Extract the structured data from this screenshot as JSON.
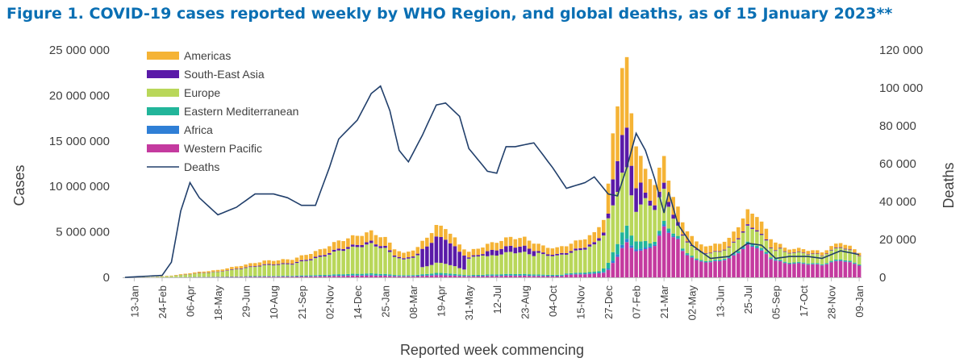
{
  "title": "Figure 1. COVID-19 cases reported weekly by WHO Region, and global deaths, as of 15 January 2023**",
  "chart_data": {
    "type": "bar",
    "stacked": true,
    "title": "Figure 1. COVID-19 cases reported weekly by WHO Region, and global deaths, as of 15 January 2023**",
    "xlabel": "Reported week commencing",
    "ylabel": "Cases",
    "y2label": "Deaths",
    "ylim": [
      0,
      25000000
    ],
    "y2lim": [
      0,
      120000
    ],
    "yticks": [
      "0",
      "5 000 000",
      "10 000 000",
      "15 000 000",
      "20 000 000",
      "25 000 000"
    ],
    "y2ticks": [
      "0",
      "20 000",
      "40 000",
      "60 000",
      "80 000",
      "100 000",
      "120 000"
    ],
    "xticks": [
      {
        "label": "13-Jan",
        "week": 2
      },
      {
        "label": "24-Feb",
        "week": 8
      },
      {
        "label": "06-Apr",
        "week": 14
      },
      {
        "label": "18-May",
        "week": 20
      },
      {
        "label": "29-Jun",
        "week": 26
      },
      {
        "label": "10-Aug",
        "week": 32
      },
      {
        "label": "21-Sep",
        "week": 38
      },
      {
        "label": "02-Nov",
        "week": 44
      },
      {
        "label": "14-Dec",
        "week": 50
      },
      {
        "label": "25-Jan",
        "week": 56
      },
      {
        "label": "08-Mar",
        "week": 62
      },
      {
        "label": "19-Apr",
        "week": 68
      },
      {
        "label": "31-May",
        "week": 74
      },
      {
        "label": "12-Jul",
        "week": 80
      },
      {
        "label": "23-Aug",
        "week": 86
      },
      {
        "label": "04-Oct",
        "week": 92
      },
      {
        "label": "15-Nov",
        "week": 98
      },
      {
        "label": "27-Dec",
        "week": 104
      },
      {
        "label": "07-Feb",
        "week": 110
      },
      {
        "label": "21-Mar",
        "week": 116
      },
      {
        "label": "02-May",
        "week": 122
      },
      {
        "label": "13-Jun",
        "week": 128
      },
      {
        "label": "25-Jul",
        "week": 134
      },
      {
        "label": "05-Sep",
        "week": 140
      },
      {
        "label": "17-Oct",
        "week": 146
      },
      {
        "label": "28-Nov",
        "week": 152
      },
      {
        "label": "09-Jan",
        "week": 158
      }
    ],
    "legend_position": "top-left",
    "legend": [
      {
        "name": "Americas",
        "color": "#f5b335",
        "kind": "bar"
      },
      {
        "name": "South-East Asia",
        "color": "#5a1aa8",
        "kind": "bar"
      },
      {
        "name": "Europe",
        "color": "#b9d75a",
        "kind": "bar"
      },
      {
        "name": "Eastern Mediterranean",
        "color": "#22b59a",
        "kind": "bar"
      },
      {
        "name": "Africa",
        "color": "#2f7fd6",
        "kind": "bar"
      },
      {
        "name": "Western Pacific",
        "color": "#c43a9f",
        "kind": "bar"
      },
      {
        "name": "Deaths",
        "color": "#213f6b",
        "kind": "line"
      }
    ],
    "stack_order": [
      "Western Pacific",
      "Africa",
      "Eastern Mediterranean",
      "Europe",
      "South-East Asia",
      "Americas"
    ],
    "series_total_cases_estimated": [
      {
        "week": 0,
        "value": 10000
      },
      {
        "week": 6,
        "value": 50000
      },
      {
        "week": 10,
        "value": 200000
      },
      {
        "week": 13,
        "value": 400000
      },
      {
        "week": 16,
        "value": 600000
      },
      {
        "week": 20,
        "value": 800000
      },
      {
        "week": 25,
        "value": 1300000
      },
      {
        "week": 30,
        "value": 1800000
      },
      {
        "week": 36,
        "value": 2000000
      },
      {
        "week": 42,
        "value": 3000000
      },
      {
        "week": 46,
        "value": 4000000
      },
      {
        "week": 50,
        "value": 4600000
      },
      {
        "week": 53,
        "value": 5000000
      },
      {
        "week": 56,
        "value": 4300000
      },
      {
        "week": 58,
        "value": 3200000
      },
      {
        "week": 60,
        "value": 2600000
      },
      {
        "week": 63,
        "value": 3300000
      },
      {
        "week": 67,
        "value": 5600000
      },
      {
        "week": 69,
        "value": 5500000
      },
      {
        "week": 72,
        "value": 3600000
      },
      {
        "week": 74,
        "value": 2800000
      },
      {
        "week": 78,
        "value": 3600000
      },
      {
        "week": 83,
        "value": 4400000
      },
      {
        "week": 86,
        "value": 4300000
      },
      {
        "week": 90,
        "value": 3400000
      },
      {
        "week": 93,
        "value": 3200000
      },
      {
        "week": 97,
        "value": 3900000
      },
      {
        "week": 101,
        "value": 4800000
      },
      {
        "week": 103,
        "value": 6500000
      },
      {
        "week": 104,
        "value": 10000000
      },
      {
        "week": 105,
        "value": 15500000
      },
      {
        "week": 106,
        "value": 19500000
      },
      {
        "week": 107,
        "value": 23300000
      },
      {
        "week": 108,
        "value": 23300000
      },
      {
        "week": 109,
        "value": 18000000
      },
      {
        "week": 110,
        "value": 15000000
      },
      {
        "week": 112,
        "value": 11500000
      },
      {
        "week": 114,
        "value": 10500000
      },
      {
        "week": 116,
        "value": 13000000
      },
      {
        "week": 118,
        "value": 9000000
      },
      {
        "week": 120,
        "value": 6000000
      },
      {
        "week": 123,
        "value": 3800000
      },
      {
        "week": 126,
        "value": 3400000
      },
      {
        "week": 130,
        "value": 4200000
      },
      {
        "week": 133,
        "value": 6500000
      },
      {
        "week": 134,
        "value": 7200000
      },
      {
        "week": 136,
        "value": 6900000
      },
      {
        "week": 139,
        "value": 4300000
      },
      {
        "week": 142,
        "value": 3200000
      },
      {
        "week": 146,
        "value": 3100000
      },
      {
        "week": 150,
        "value": 2800000
      },
      {
        "week": 154,
        "value": 3900000
      },
      {
        "week": 158,
        "value": 2800000
      }
    ],
    "series_deaths_estimated": [
      {
        "week": 0,
        "value": 0
      },
      {
        "week": 8,
        "value": 1000
      },
      {
        "week": 10,
        "value": 8000
      },
      {
        "week": 12,
        "value": 35000
      },
      {
        "week": 14,
        "value": 50000
      },
      {
        "week": 16,
        "value": 42000
      },
      {
        "week": 20,
        "value": 33000
      },
      {
        "week": 24,
        "value": 37000
      },
      {
        "week": 28,
        "value": 44000
      },
      {
        "week": 32,
        "value": 44000
      },
      {
        "week": 35,
        "value": 42000
      },
      {
        "week": 38,
        "value": 38000
      },
      {
        "week": 41,
        "value": 38000
      },
      {
        "week": 44,
        "value": 58000
      },
      {
        "week": 46,
        "value": 73000
      },
      {
        "week": 50,
        "value": 83000
      },
      {
        "week": 53,
        "value": 97000
      },
      {
        "week": 55,
        "value": 101000
      },
      {
        "week": 57,
        "value": 88000
      },
      {
        "week": 59,
        "value": 67000
      },
      {
        "week": 61,
        "value": 61000
      },
      {
        "week": 64,
        "value": 75000
      },
      {
        "week": 67,
        "value": 91000
      },
      {
        "week": 69,
        "value": 92000
      },
      {
        "week": 72,
        "value": 85000
      },
      {
        "week": 74,
        "value": 68000
      },
      {
        "week": 78,
        "value": 56000
      },
      {
        "week": 80,
        "value": 55000
      },
      {
        "week": 82,
        "value": 69000
      },
      {
        "week": 84,
        "value": 69000
      },
      {
        "week": 88,
        "value": 71000
      },
      {
        "week": 92,
        "value": 58000
      },
      {
        "week": 95,
        "value": 47000
      },
      {
        "week": 99,
        "value": 50000
      },
      {
        "week": 101,
        "value": 53000
      },
      {
        "week": 104,
        "value": 44000
      },
      {
        "week": 106,
        "value": 43000
      },
      {
        "week": 108,
        "value": 58000
      },
      {
        "week": 110,
        "value": 76000
      },
      {
        "week": 112,
        "value": 67000
      },
      {
        "week": 114,
        "value": 52000
      },
      {
        "week": 116,
        "value": 34000
      },
      {
        "week": 117,
        "value": 45000
      },
      {
        "week": 119,
        "value": 28000
      },
      {
        "week": 122,
        "value": 17000
      },
      {
        "week": 126,
        "value": 10000
      },
      {
        "week": 130,
        "value": 11000
      },
      {
        "week": 134,
        "value": 18000
      },
      {
        "week": 137,
        "value": 17000
      },
      {
        "week": 140,
        "value": 10000
      },
      {
        "week": 143,
        "value": 11000
      },
      {
        "week": 147,
        "value": 11000
      },
      {
        "week": 150,
        "value": 10000
      },
      {
        "week": 154,
        "value": 14000
      },
      {
        "week": 158,
        "value": 12000
      }
    ]
  }
}
